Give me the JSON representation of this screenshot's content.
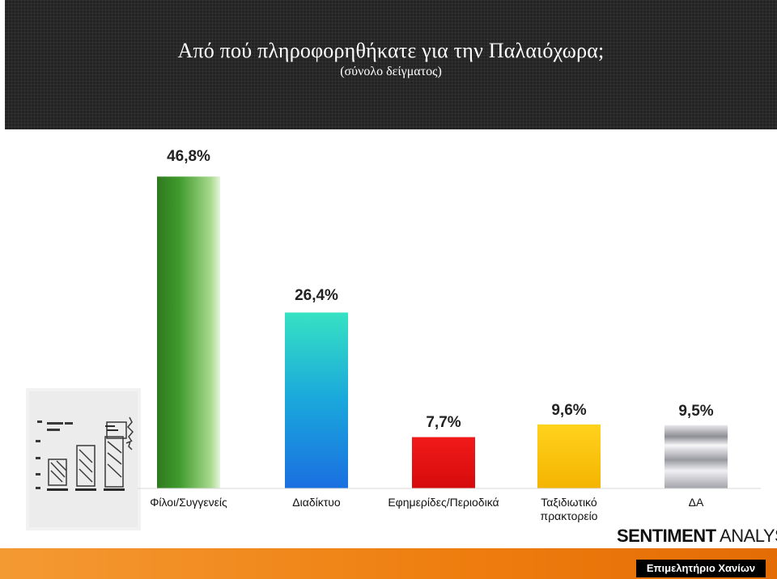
{
  "title": "Από πού πληροφορηθήκατε για την Παλαιόχωρα;",
  "subtitle": "(σύνολο δείγματος)",
  "chart_data": {
    "type": "bar",
    "title": "Από πού πληροφορηθήκατε για την Παλαιόχωρα;",
    "subtitle": "(σύνολο δείγματος)",
    "xlabel": "",
    "ylabel": "",
    "categories": [
      [
        "Φίλοι/Συγγενείς"
      ],
      [
        "Διαδίκτυο"
      ],
      [
        "Εφημερίδες/Περιοδικά"
      ],
      [
        "Ταξιδιωτικό",
        "πρακτορείο"
      ],
      [
        "ΔΑ"
      ]
    ],
    "values": [
      46.8,
      26.4,
      7.7,
      9.6,
      9.5
    ],
    "labels": [
      "46,8%",
      "26,4%",
      "7,7%",
      "9,6%",
      "9,5%"
    ],
    "colors": [
      "#3e8e2c",
      "#2fc3cc",
      "#e01010",
      "#f7c200",
      "#b9b9bf"
    ],
    "ylim": [
      0,
      50
    ],
    "grid": false,
    "legend": "none"
  },
  "brand": {
    "bold": "SENTIMENT",
    "light": "ANALYSIS"
  },
  "footer": "Επιμελητήριο Χανίων"
}
